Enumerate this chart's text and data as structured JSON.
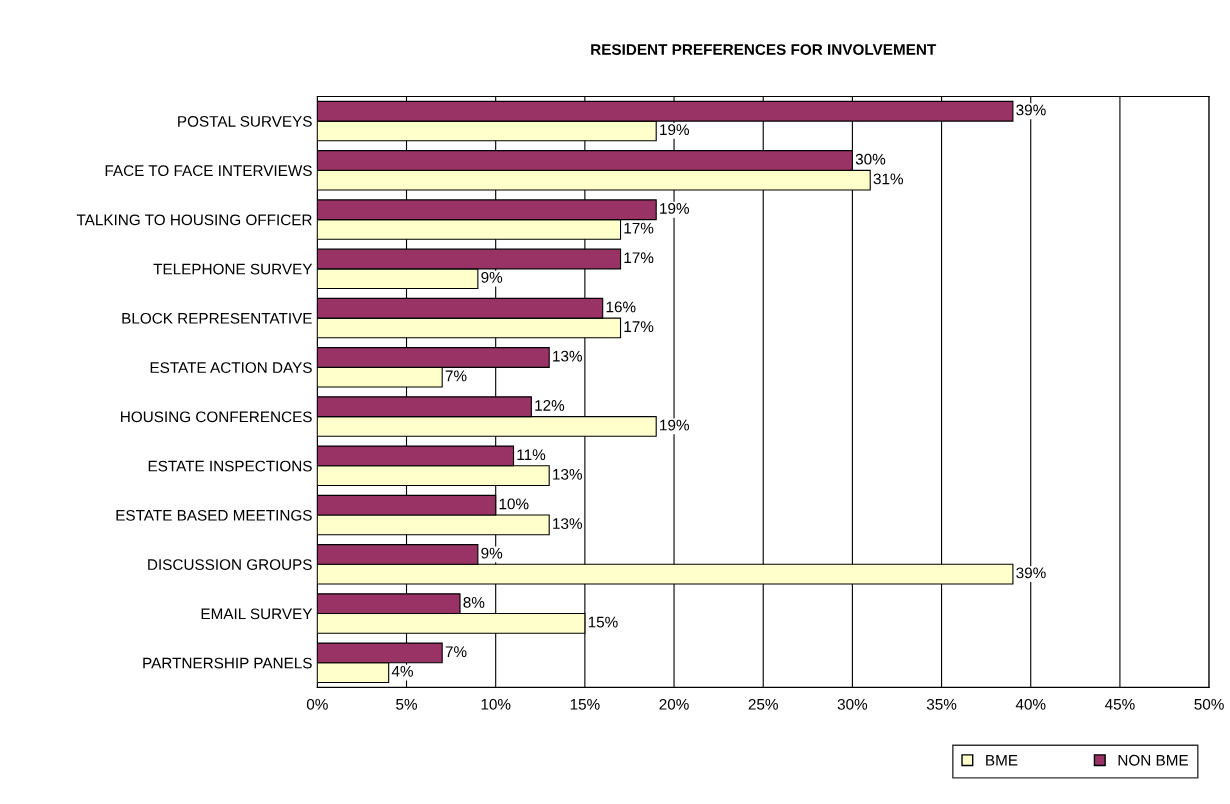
{
  "chart_data": {
    "type": "bar",
    "orientation": "horizontal",
    "title": "RESIDENT PREFERENCES FOR INVOLVEMENT",
    "categories": [
      "POSTAL SURVEYS",
      "FACE TO FACE INTERVIEWS",
      "TALKING TO HOUSING OFFICER",
      "TELEPHONE SURVEY",
      "BLOCK REPRESENTATIVE",
      "ESTATE ACTION DAYS",
      "HOUSING CONFERENCES",
      "ESTATE INSPECTIONS",
      "ESTATE BASED MEETINGS",
      "DISCUSSION GROUPS",
      "EMAIL SURVEY",
      "PARTNERSHIP PANELS"
    ],
    "series": [
      {
        "name": "BME",
        "color": "#ffffcc",
        "values": [
          19,
          31,
          17,
          9,
          17,
          7,
          19,
          13,
          13,
          39,
          15,
          4
        ],
        "value_labels": [
          "19%",
          "31%",
          "17%",
          "9%",
          "17%",
          "7%",
          "19%",
          "13%",
          "13%",
          "39%",
          "15%",
          "4%"
        ]
      },
      {
        "name": "NON BME",
        "color": "#993366",
        "values": [
          39,
          30,
          19,
          17,
          16,
          13,
          12,
          11,
          10,
          9,
          8,
          7
        ],
        "value_labels": [
          "39%",
          "30%",
          "19%",
          "17%",
          "16%",
          "13%",
          "12%",
          "11%",
          "10%",
          "9%",
          "8%",
          "7%"
        ]
      }
    ],
    "xlim": [
      0,
      50
    ],
    "xticks": [
      {
        "value": 0,
        "label": "0%"
      },
      {
        "value": 5,
        "label": "5%"
      },
      {
        "value": 10,
        "label": "10%"
      },
      {
        "value": 15,
        "label": "15%"
      },
      {
        "value": 20,
        "label": "20%"
      },
      {
        "value": 25,
        "label": "25%"
      },
      {
        "value": 30,
        "label": "30%"
      },
      {
        "value": 35,
        "label": "35%"
      },
      {
        "value": 40,
        "label": "40%"
      },
      {
        "value": 45,
        "label": "45%"
      },
      {
        "value": 50,
        "label": "50%"
      }
    ],
    "grid": "x",
    "legend": "bottom right"
  }
}
